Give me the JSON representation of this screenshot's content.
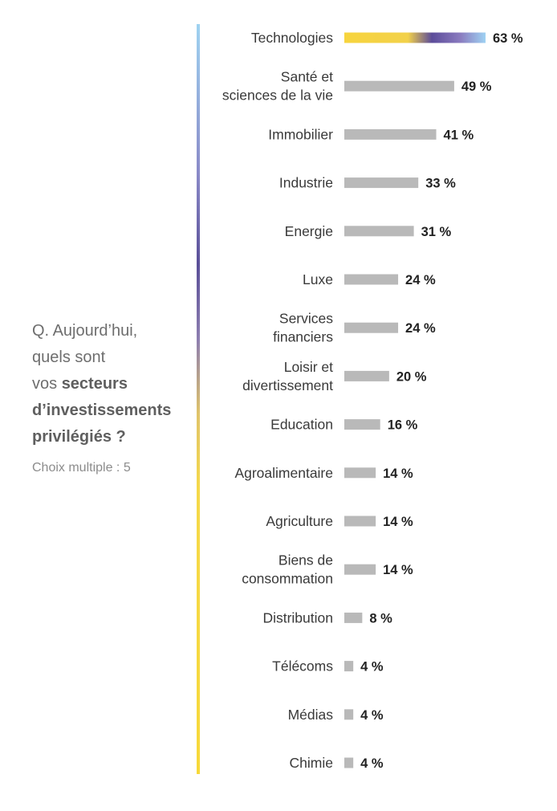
{
  "question": {
    "line1": "Q. Aujourd’hui,",
    "line2": "quels sont",
    "line3_prefix": "vos ",
    "line3_bold": "secteurs",
    "line4_bold": "d’investissements",
    "line5_bold": "privilégiés ?",
    "note": "Choix multiple : 5"
  },
  "colors": {
    "bar": "#b9b9b9",
    "highlight_gradient": [
      "#f7d43d",
      "#f2d14a",
      "#5c4c9a",
      "#8a7bbf",
      "#9fd2f3"
    ],
    "divider_gradient": [
      "#9fd3f1",
      "#5a4f98",
      "#f7d93a"
    ]
  },
  "chart_data": {
    "type": "bar",
    "orientation": "horizontal",
    "categories": [
      "Technologies",
      "Santé et sciences de la vie",
      "Immobilier",
      "Industrie",
      "Energie",
      "Luxe",
      "Services financiers",
      "Loisir et divertissement",
      "Education",
      "Agroalimentaire",
      "Agriculture",
      "Biens de consommation",
      "Distribution",
      "Télécoms",
      "Médias",
      "Chimie"
    ],
    "category_lines": [
      [
        "Technologies"
      ],
      [
        "Santé et",
        "sciences de la vie"
      ],
      [
        "Immobilier"
      ],
      [
        "Industrie"
      ],
      [
        "Energie"
      ],
      [
        "Luxe"
      ],
      [
        "Services",
        "financiers"
      ],
      [
        "Loisir et",
        "divertissement"
      ],
      [
        "Education"
      ],
      [
        "Agroalimentaire"
      ],
      [
        "Agriculture"
      ],
      [
        "Biens de",
        "consommation"
      ],
      [
        "Distribution"
      ],
      [
        "Télécoms"
      ],
      [
        "Médias"
      ],
      [
        "Chimie"
      ]
    ],
    "values": [
      63,
      49,
      41,
      33,
      31,
      24,
      24,
      20,
      16,
      14,
      14,
      14,
      8,
      4,
      4,
      4
    ],
    "value_labels": [
      "63 %",
      "49 %",
      "41 %",
      "33 %",
      "31 %",
      "24 %",
      "24 %",
      "20 %",
      "16 %",
      "14 %",
      "14 %",
      "14 %",
      "8 %",
      "4 %",
      "4 %",
      "4 %"
    ],
    "highlight_index": 0,
    "xlim": [
      0,
      63
    ],
    "grid": false,
    "legend": "none"
  }
}
